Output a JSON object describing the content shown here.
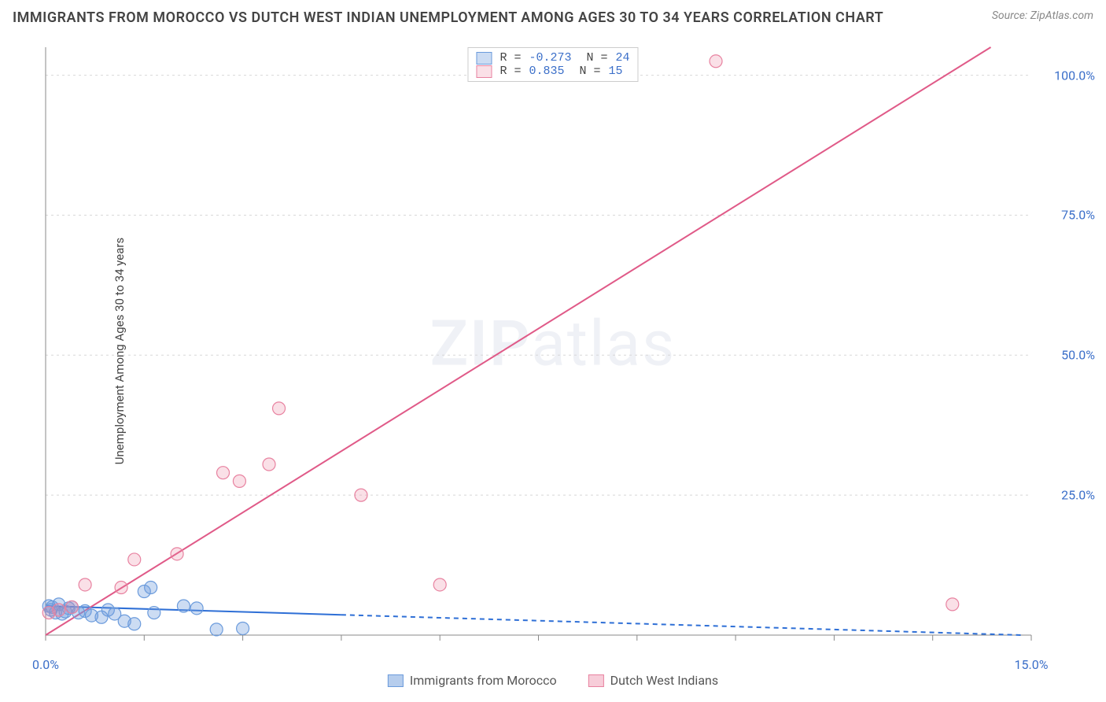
{
  "header": {
    "title": "IMMIGRANTS FROM MOROCCO VS DUTCH WEST INDIAN UNEMPLOYMENT AMONG AGES 30 TO 34 YEARS CORRELATION CHART",
    "source": "Source: ZipAtlas.com"
  },
  "watermark": {
    "prefix": "ZIP",
    "suffix": "atlas"
  },
  "ylabel": "Unemployment Among Ages 30 to 34 years",
  "chart": {
    "type": "scatter",
    "xlim": [
      0,
      15
    ],
    "ylim": [
      0,
      105
    ],
    "xtick_positions": [
      0,
      1.5,
      3.0,
      4.5,
      6.0,
      7.5,
      9.0,
      10.5,
      12.0,
      13.5,
      15.0
    ],
    "xtick_labels": [
      "0.0%",
      "",
      "",
      "",
      "",
      "",
      "",
      "",
      "",
      "",
      "15.0%"
    ],
    "ytick_positions": [
      25,
      50,
      75,
      100
    ],
    "ytick_labels": [
      "25.0%",
      "50.0%",
      "75.0%",
      "100.0%"
    ],
    "grid_color": "#d8d8d8",
    "axis_color": "#888888",
    "background_color": "#ffffff",
    "series": [
      {
        "id": "morocco",
        "label": "Immigrants from Morocco",
        "color_fill": "rgba(110,155,220,0.35)",
        "color_stroke": "#6b9bdc",
        "marker_stroke_width": 1.2,
        "marker_radius": 8,
        "regression": {
          "slope": -0.35,
          "intercept": 5.2,
          "color": "#2e6fd6",
          "width": 2,
          "dash_from_x": 4.5
        },
        "legend_stats": {
          "r": "-0.273",
          "n": "24"
        },
        "points": [
          [
            0.05,
            5.2
          ],
          [
            0.08,
            4.5
          ],
          [
            0.1,
            5.0
          ],
          [
            0.15,
            4.0
          ],
          [
            0.2,
            5.5
          ],
          [
            0.25,
            3.8
          ],
          [
            0.3,
            4.2
          ],
          [
            0.35,
            4.8
          ],
          [
            0.4,
            5.0
          ],
          [
            0.5,
            4.0
          ],
          [
            0.6,
            4.3
          ],
          [
            0.7,
            3.5
          ],
          [
            0.85,
            3.2
          ],
          [
            0.95,
            4.5
          ],
          [
            1.05,
            3.8
          ],
          [
            1.2,
            2.5
          ],
          [
            1.35,
            2.0
          ],
          [
            1.5,
            7.8
          ],
          [
            1.6,
            8.5
          ],
          [
            1.65,
            4.0
          ],
          [
            2.1,
            5.2
          ],
          [
            2.3,
            4.8
          ],
          [
            2.6,
            1.0
          ],
          [
            3.0,
            1.2
          ]
        ]
      },
      {
        "id": "dutch",
        "label": "Dutch West Indians",
        "color_fill": "rgba(235,130,160,0.25)",
        "color_stroke": "#e882a0",
        "marker_stroke_width": 1.2,
        "marker_radius": 8,
        "regression": {
          "slope": 7.3,
          "intercept": 0,
          "color": "#e05a88",
          "width": 2,
          "dash_from_x": null
        },
        "legend_stats": {
          "r": " 0.835",
          "n": "15"
        },
        "points": [
          [
            0.05,
            4.0
          ],
          [
            0.2,
            4.5
          ],
          [
            0.4,
            5.0
          ],
          [
            0.6,
            9.0
          ],
          [
            1.15,
            8.5
          ],
          [
            1.35,
            13.5
          ],
          [
            2.0,
            14.5
          ],
          [
            2.7,
            29.0
          ],
          [
            2.95,
            27.5
          ],
          [
            3.4,
            30.5
          ],
          [
            3.55,
            40.5
          ],
          [
            4.8,
            25.0
          ],
          [
            6.0,
            9.0
          ],
          [
            10.2,
            102.5
          ],
          [
            13.8,
            5.5
          ]
        ]
      }
    ]
  },
  "legend_top": {
    "swatch_border_morocco": "#6b9bdc",
    "swatch_fill_morocco": "rgba(110,155,220,0.35)",
    "swatch_border_dutch": "#e882a0",
    "swatch_fill_dutch": "rgba(235,130,160,0.25)"
  },
  "bottom_legend": {
    "items": [
      {
        "label": "Immigrants from Morocco",
        "fill": "rgba(110,155,220,0.5)",
        "border": "#6b9bdc"
      },
      {
        "label": "Dutch West Indians",
        "fill": "rgba(235,130,160,0.4)",
        "border": "#e882a0"
      }
    ]
  }
}
